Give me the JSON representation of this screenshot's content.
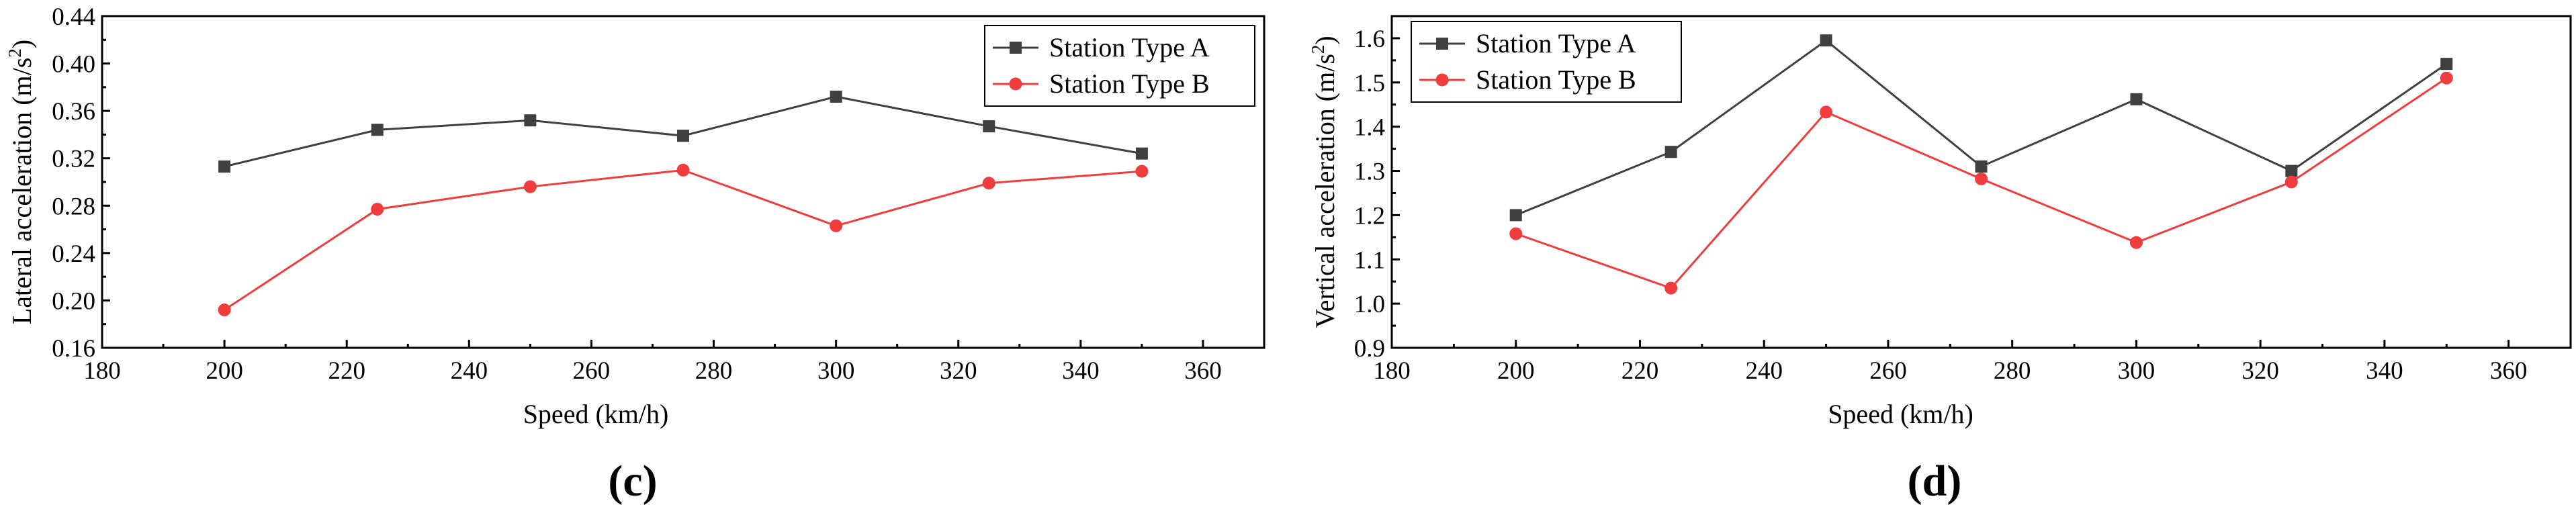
{
  "chart_data": [
    {
      "type": "line",
      "panel_label": "(c)",
      "xlabel": "Speed (km/h)",
      "ylabel_main": "Lateral acceleration (m/s",
      "ylabel_sup": "2",
      "ylabel_end": ")",
      "xlim": [
        180,
        370
      ],
      "ylim": [
        0.16,
        0.44
      ],
      "xticks": [
        180,
        200,
        220,
        240,
        260,
        280,
        300,
        320,
        340,
        360
      ],
      "yticks": [
        0.16,
        0.2,
        0.24,
        0.28,
        0.32,
        0.36,
        0.4,
        0.44
      ],
      "ytick_labels": [
        "0.16",
        "0.20",
        "0.24",
        "0.28",
        "0.32",
        "0.36",
        "0.40",
        "0.44"
      ],
      "legend_position": "top-right",
      "x": [
        200,
        225,
        250,
        275,
        300,
        325,
        350
      ],
      "series": [
        {
          "name": "Station Type A",
          "color": "#404040",
          "marker": "square",
          "values": [
            0.313,
            0.344,
            0.352,
            0.339,
            0.372,
            0.347,
            0.324
          ]
        },
        {
          "name": "Station Type B",
          "color": "#f03c3c",
          "marker": "circle",
          "values": [
            0.192,
            0.277,
            0.296,
            0.31,
            0.263,
            0.299,
            0.309
          ]
        }
      ]
    },
    {
      "type": "line",
      "panel_label": "(d)",
      "xlabel": "Speed (km/h)",
      "ylabel_main": "Vertical acceleration (m/s",
      "ylabel_sup": "2",
      "ylabel_end": ")",
      "xlim": [
        180,
        370
      ],
      "ylim": [
        0.9,
        1.65
      ],
      "xticks": [
        180,
        200,
        220,
        240,
        260,
        280,
        300,
        320,
        340,
        360
      ],
      "yticks": [
        0.9,
        1.0,
        1.1,
        1.2,
        1.3,
        1.4,
        1.5,
        1.6
      ],
      "ytick_labels": [
        "0.9",
        "1.0",
        "1.1",
        "1.2",
        "1.3",
        "1.4",
        "1.5",
        "1.6"
      ],
      "legend_position": "top-left",
      "x": [
        200,
        225,
        250,
        275,
        300,
        325,
        350
      ],
      "series": [
        {
          "name": "Station Type A",
          "color": "#404040",
          "marker": "square",
          "values": [
            1.2,
            1.343,
            1.595,
            1.31,
            1.462,
            1.3,
            1.542
          ]
        },
        {
          "name": "Station Type B",
          "color": "#f03c3c",
          "marker": "circle",
          "values": [
            1.158,
            1.035,
            1.433,
            1.282,
            1.138,
            1.275,
            1.51
          ]
        }
      ]
    }
  ]
}
